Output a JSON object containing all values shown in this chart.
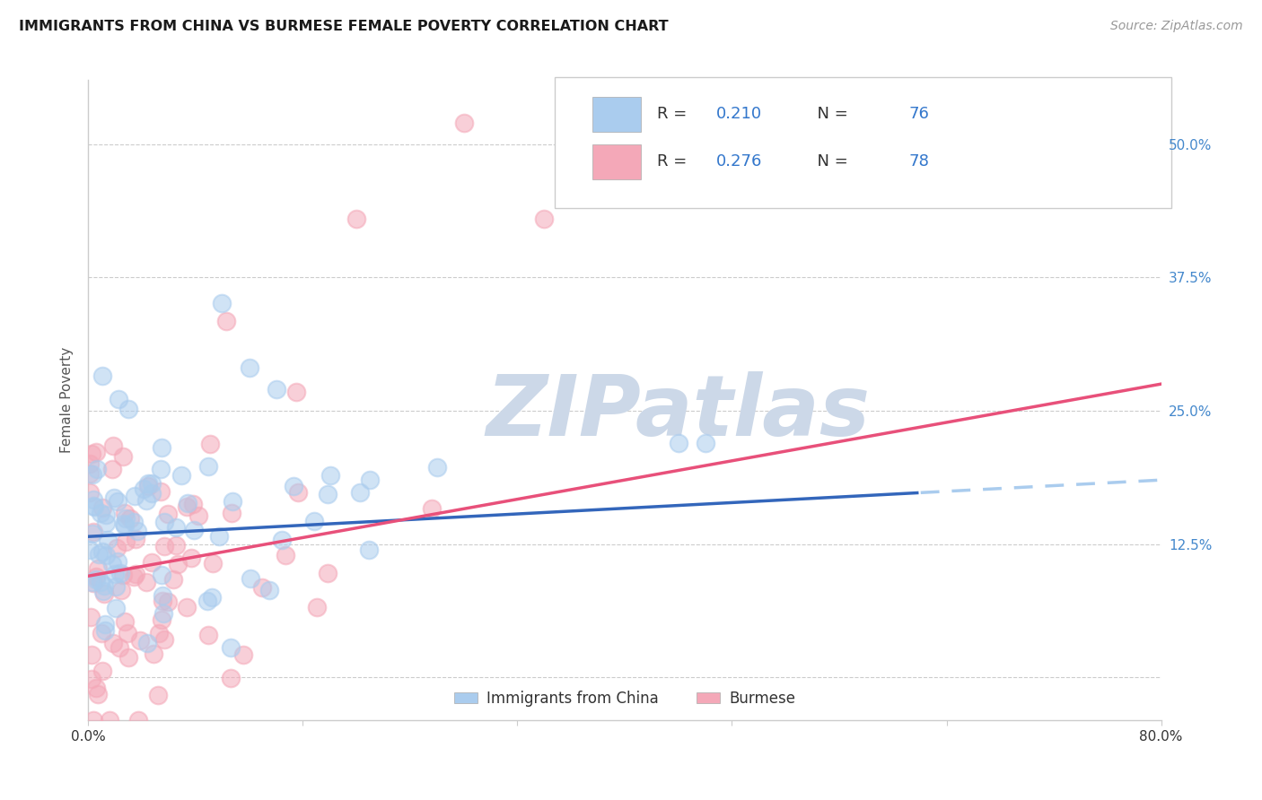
{
  "title": "IMMIGRANTS FROM CHINA VS BURMESE FEMALE POVERTY CORRELATION CHART",
  "source": "Source: ZipAtlas.com",
  "ylabel": "Female Poverty",
  "yticks": [
    0.0,
    0.125,
    0.25,
    0.375,
    0.5
  ],
  "ytick_labels": [
    "",
    "12.5%",
    "25.0%",
    "37.5%",
    "50.0%"
  ],
  "xlim": [
    0.0,
    0.8
  ],
  "ylim": [
    -0.04,
    0.56
  ],
  "legend_bottom_label1": "Immigrants from China",
  "legend_bottom_label2": "Burmese",
  "color_china": "#aaccee",
  "color_burmese": "#f4a8b8",
  "trendline_china_solid": "#3366bb",
  "trendline_china_dash": "#aaccee",
  "trendline_burmese": "#e8507a",
  "watermark_text": "ZIPatlas",
  "watermark_color": "#ccd8e8",
  "R_china": 0.21,
  "N_china": 76,
  "R_burmese": 0.276,
  "N_burmese": 78,
  "seed": 42,
  "background_color": "#ffffff",
  "grid_color": "#cccccc",
  "china_trendline_x0": 0.0,
  "china_trendline_y0": 0.132,
  "china_trendline_x1": 0.8,
  "china_trendline_y1": 0.185,
  "china_trendline_solid_end": 0.62,
  "burmese_trendline_x0": 0.0,
  "burmese_trendline_y0": 0.095,
  "burmese_trendline_x1": 0.8,
  "burmese_trendline_y1": 0.275
}
